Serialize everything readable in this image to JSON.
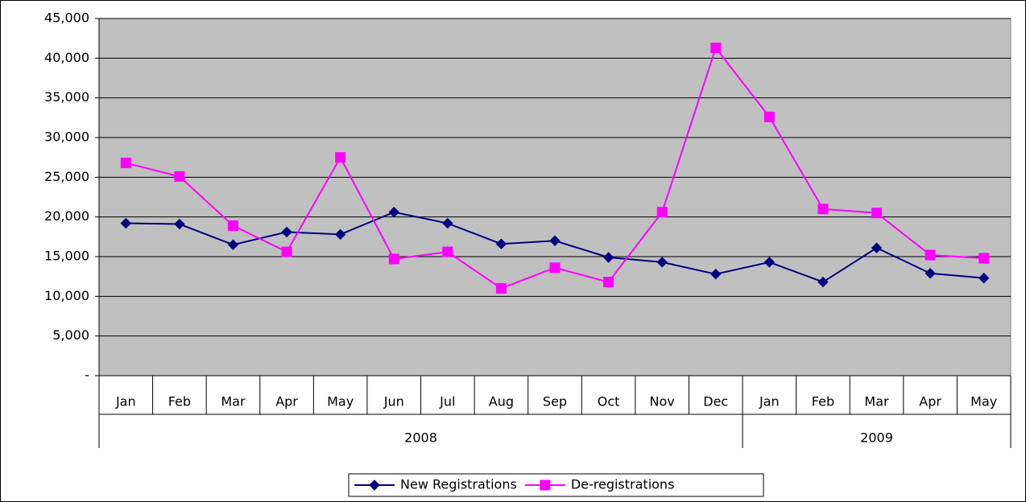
{
  "chart_data": {
    "type": "line",
    "categories": [
      "Jan",
      "Feb",
      "Mar",
      "Apr",
      "May",
      "Jun",
      "Jul",
      "Aug",
      "Sep",
      "Oct",
      "Nov",
      "Dec",
      "Jan",
      "Feb",
      "Mar",
      "Apr",
      "May"
    ],
    "years": [
      "2008",
      "2008",
      "2008",
      "2008",
      "2008",
      "2008",
      "2008",
      "2008",
      "2008",
      "2008",
      "2008",
      "2008",
      "2009",
      "2009",
      "2009",
      "2009",
      "2009"
    ],
    "series": [
      {
        "name": "New Registrations",
        "color": "#000080",
        "marker": "diamond",
        "values": [
          19200,
          19100,
          16500,
          18100,
          17800,
          20600,
          19200,
          16600,
          17000,
          14900,
          14300,
          12800,
          14300,
          11800,
          16100,
          12900,
          12300
        ]
      },
      {
        "name": "De-registrations",
        "color": "#FF00FF",
        "marker": "square",
        "values": [
          26800,
          25100,
          18900,
          15600,
          27500,
          14700,
          15600,
          11000,
          13600,
          11800,
          20600,
          41300,
          32600,
          21000,
          20500,
          15200,
          14800
        ]
      }
    ],
    "ylim": [
      0,
      45000
    ],
    "yticks": [
      {
        "value": 0,
        "label": "-"
      },
      {
        "value": 5000,
        "label": "5,000"
      },
      {
        "value": 10000,
        "label": "10,000"
      },
      {
        "value": 15000,
        "label": "15,000"
      },
      {
        "value": 20000,
        "label": "20,000"
      },
      {
        "value": 25000,
        "label": "25,000"
      },
      {
        "value": 30000,
        "label": "30,000"
      },
      {
        "value": 35000,
        "label": "35,000"
      },
      {
        "value": 40000,
        "label": "40,000"
      },
      {
        "value": 45000,
        "label": "45,000"
      }
    ],
    "grid": true,
    "plot_background": "#C0C0C0",
    "legend": "bottom"
  }
}
